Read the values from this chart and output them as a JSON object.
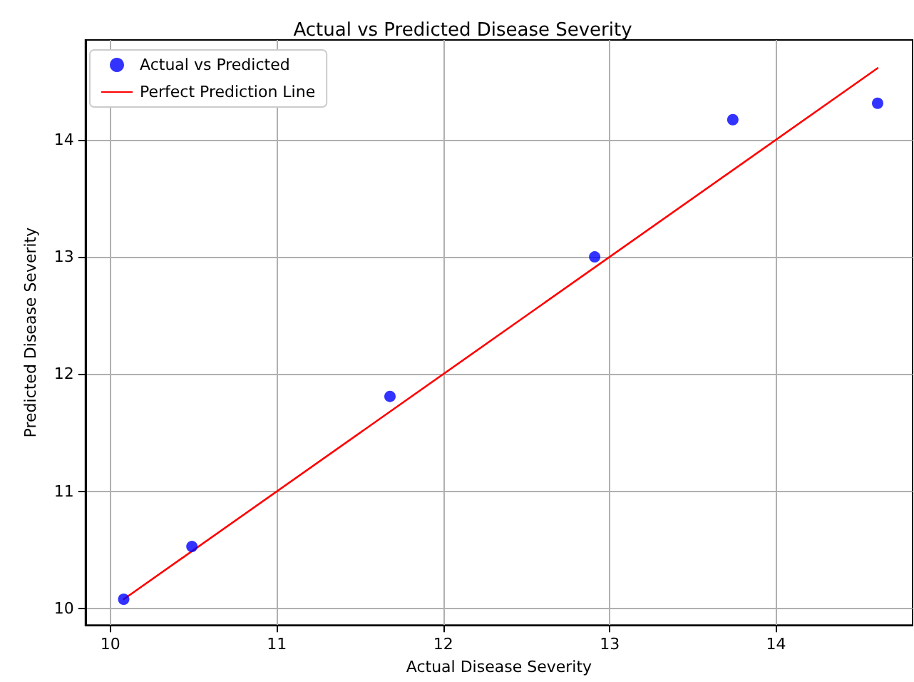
{
  "chart_data": {
    "type": "scatter",
    "title": "Actual vs Predicted Disease Severity",
    "xlabel": "Actual Disease Severity",
    "ylabel": "Predicted Disease Severity",
    "x": [
      10.08,
      10.49,
      11.68,
      12.91,
      13.74,
      14.61
    ],
    "series": [
      {
        "name": "Actual vs Predicted",
        "color": "#0000ff",
        "values": [
          10.08,
          10.53,
          11.81,
          13.0,
          14.17,
          14.31
        ],
        "marker": "circle"
      },
      {
        "name": "Perfect Prediction Line",
        "type": "line",
        "color": "#ff0000",
        "x": [
          10.08,
          14.61
        ],
        "values": [
          10.08,
          14.61
        ],
        "marker": "none",
        "line_style": "solid"
      }
    ],
    "xlim": [
      9.85,
      14.82
    ],
    "ylim": [
      9.86,
      14.85
    ],
    "xticks": [
      10,
      11,
      12,
      13,
      14
    ],
    "yticks": [
      10,
      11,
      12,
      13,
      14
    ],
    "grid": true,
    "legend": "top left"
  }
}
